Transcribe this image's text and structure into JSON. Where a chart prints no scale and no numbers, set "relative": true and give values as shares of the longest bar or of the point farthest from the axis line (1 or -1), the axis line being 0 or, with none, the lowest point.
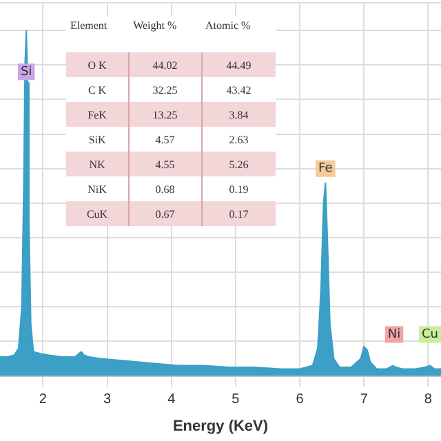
{
  "chart_data": {
    "type": "area",
    "relative": true,
    "xlabel": "Energy (KeV)",
    "color": "#3b9fc6",
    "grid": true,
    "xlim": [
      1.33,
      8.2
    ],
    "xticks": [
      2,
      3,
      4,
      5,
      6,
      7,
      8
    ],
    "x": [
      1.33,
      1.45,
      1.55,
      1.62,
      1.67,
      1.7,
      1.72,
      1.74,
      1.76,
      1.78,
      1.81,
      1.85,
      1.95,
      2.1,
      2.3,
      2.5,
      2.56,
      2.6,
      2.64,
      2.72,
      2.9,
      3.2,
      3.5,
      3.8,
      4.1,
      4.5,
      4.9,
      5.3,
      5.7,
      6.0,
      6.2,
      6.28,
      6.33,
      6.37,
      6.4,
      6.43,
      6.47,
      6.53,
      6.62,
      6.8,
      6.95,
      7.0,
      7.05,
      7.1,
      7.2,
      7.35,
      7.45,
      7.5,
      7.6,
      7.8,
      7.95,
      8.03,
      8.1,
      8.2
    ],
    "values": [
      0.055,
      0.055,
      0.06,
      0.08,
      0.2,
      0.55,
      0.9,
      1,
      0.85,
      0.45,
      0.15,
      0.07,
      0.065,
      0.06,
      0.055,
      0.055,
      0.065,
      0.07,
      0.06,
      0.055,
      0.05,
      0.045,
      0.04,
      0.035,
      0.03,
      0.03,
      0.025,
      0.025,
      0.02,
      0.02,
      0.03,
      0.08,
      0.25,
      0.5,
      0.56,
      0.4,
      0.15,
      0.05,
      0.025,
      0.025,
      0.05,
      0.085,
      0.075,
      0.04,
      0.02,
      0.02,
      0.03,
      0.025,
      0.02,
      0.02,
      0.025,
      0.03,
      0.02,
      0.02
    ],
    "annotations": [
      {
        "text": "Si",
        "x": 1.74,
        "y": 0.88
      },
      {
        "text": "Fe",
        "x": 6.4,
        "y": 0.6
      },
      {
        "text": "Ni",
        "x": 7.47,
        "y": 0.12
      },
      {
        "text": "Cu",
        "x": 8.03,
        "y": 0.12
      },
      "Element",
      "Weight %",
      "Atomic %",
      "O K",
      "44.02",
      "44.49",
      "C K",
      "32.25",
      "43.42",
      "FeK",
      "13.25",
      "3.84",
      "SiK",
      "4.57",
      "2.63",
      "NK",
      "4.55",
      "5.26",
      "NiK",
      "0.68",
      "0.19",
      "CuK",
      "0.67",
      "0.17"
    ]
  }
}
